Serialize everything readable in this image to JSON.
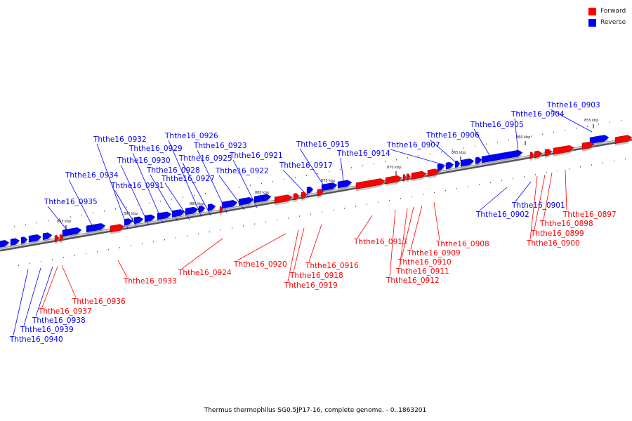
{
  "legend": [
    {
      "label": "Forward",
      "color": "#ff0000"
    },
    {
      "label": "Reverse",
      "color": "#0000ff"
    }
  ],
  "colors": {
    "forward": "#ff0000",
    "reverse": "#0000ff",
    "backbone": "#888888"
  },
  "caption": "Thermus thermophilus SG0.5JP17-16, complete genome. - 0..1863201",
  "ticks": [
    "855 kbp",
    "860 kbp",
    "865 kbp",
    "870 kbp",
    "875 kbp",
    "880 kbp",
    "885 kbp",
    "890 kbp",
    "895 kbp"
  ],
  "genes_reverse": [
    "Ththe16_0903",
    "Ththe16_0904",
    "Ththe16_0905",
    "Ththe16_0906",
    "Ththe16_0907",
    "Ththe16_0914",
    "Ththe16_0915",
    "Ththe16_0917",
    "Ththe16_0921",
    "Ththe16_0922",
    "Ththe16_0923",
    "Ththe16_0925",
    "Ththe16_0926",
    "Ththe16_0927",
    "Ththe16_0928",
    "Ththe16_0929",
    "Ththe16_0930",
    "Ththe16_0931",
    "Ththe16_0932",
    "Ththe16_0934",
    "Ththe16_0935",
    "Ththe16_0902",
    "Ththe16_0901",
    "Ththe16_0938",
    "Ththe16_0939",
    "Ththe16_0940"
  ],
  "genes_forward": [
    "Ththe16_0897",
    "Ththe16_0898",
    "Ththe16_0899",
    "Ththe16_0900",
    "Ththe16_0908",
    "Ththe16_0909",
    "Ththe16_0910",
    "Ththe16_0911",
    "Ththe16_0912",
    "Ththe16_0913",
    "Ththe16_0916",
    "Ththe16_0918",
    "Ththe16_0919",
    "Ththe16_0920",
    "Ththe16_0924",
    "Ththe16_0933",
    "Ththe16_0936",
    "Ththe16_0937"
  ]
}
